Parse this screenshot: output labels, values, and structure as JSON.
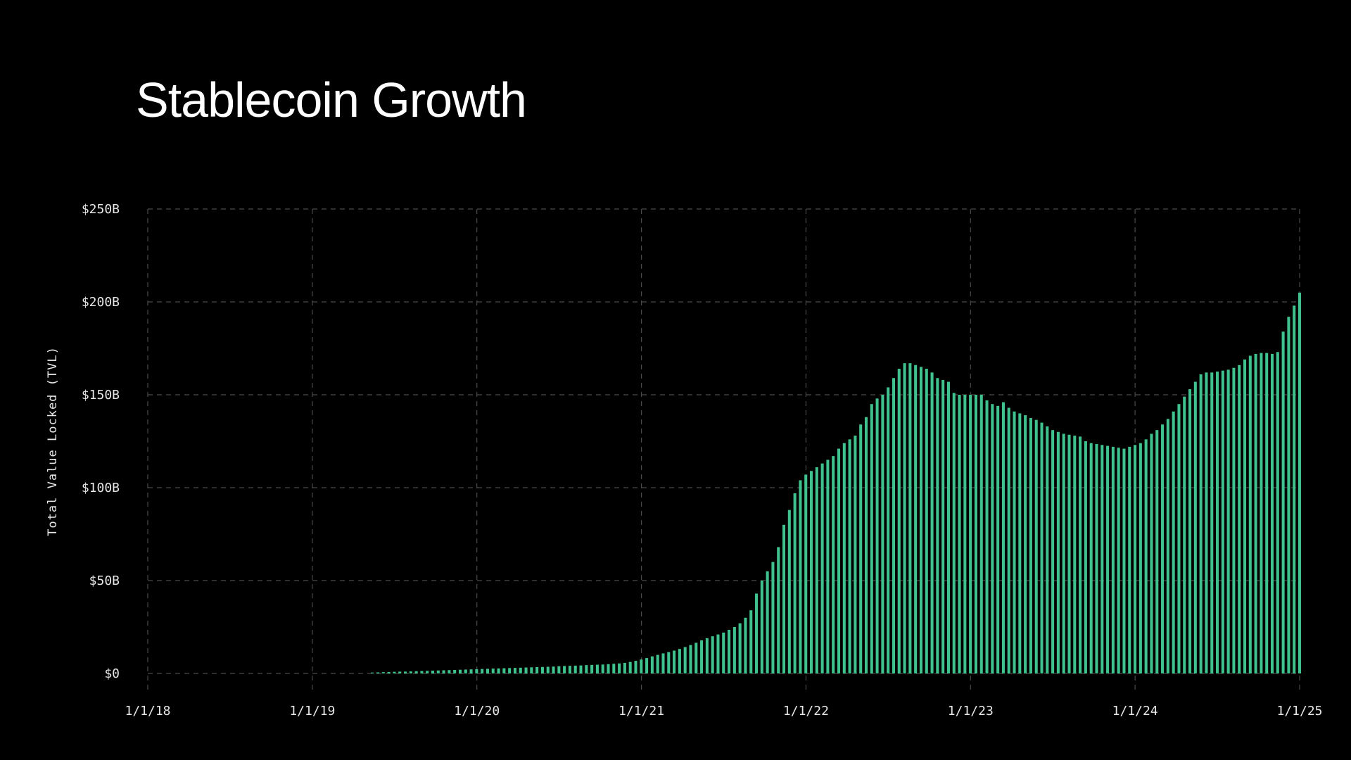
{
  "page": {
    "title": "Stablecoin Growth"
  },
  "colors": {
    "background": "#000000",
    "bar": "#3fc28e",
    "grid": "#4a4a4a",
    "text": "#e6e6e6"
  },
  "chart_data": {
    "type": "bar",
    "title": "Stablecoin Growth",
    "ylabel": "Total Value Locked (TVL)",
    "xlabel": "",
    "x_start": "2018-01-01",
    "x_end": "2025-01-01",
    "ylim": [
      0,
      250
    ],
    "y_unit": "B USD",
    "grid": true,
    "x_ticks": [
      "1/1/18",
      "1/1/19",
      "1/1/20",
      "1/1/21",
      "1/1/22",
      "1/1/23",
      "1/1/24",
      "1/1/25"
    ],
    "y_ticks": [
      "$0",
      "$50B",
      "$100B",
      "$150B",
      "$200B",
      "$250B"
    ],
    "y_tick_values": [
      0,
      50,
      100,
      150,
      200,
      250
    ],
    "values": [
      0.5,
      0.6,
      0.7,
      0.8,
      0.9,
      1.0,
      1.0,
      1.1,
      1.2,
      1.3,
      1.4,
      1.5,
      1.6,
      1.7,
      1.8,
      1.9,
      2.0,
      2.1,
      2.2,
      2.3,
      2.4,
      2.5,
      2.6,
      2.7,
      2.8,
      2.9,
      3.0,
      3.1,
      3.2,
      3.3,
      3.4,
      3.5,
      3.6,
      3.7,
      3.9,
      4.0,
      4.1,
      4.2,
      4.3,
      4.5,
      4.6,
      4.7,
      4.8,
      5.0,
      5.2,
      5.4,
      5.7,
      6.2,
      6.8,
      7.5,
      8.3,
      9.2,
      10.0,
      10.8,
      11.5,
      12.3,
      13.2,
      14.2,
      15.3,
      16.5,
      17.8,
      19.0,
      20.0,
      21.0,
      22.0,
      23.5,
      25.0,
      27.0,
      30.0,
      34.0,
      43.0,
      50.0,
      55.0,
      60.0,
      68.0,
      80.0,
      88.0,
      97.0,
      104.0,
      107.0,
      109.0,
      111.0,
      113.0,
      115.0,
      117.0,
      121.0,
      124.0,
      126.0,
      128.0,
      134.0,
      138.0,
      145.0,
      148.0,
      150.0,
      154.0,
      159.0,
      164.0,
      167.0,
      167.0,
      166.0,
      165.0,
      164.0,
      162.0,
      159.0,
      158.0,
      157.0,
      151.0,
      150.0,
      150.0,
      150.0,
      150.0,
      150.0,
      147.0,
      145.0,
      144.0,
      146.0,
      143.0,
      141.0,
      140.0,
      139.0,
      137.5,
      136.5,
      135.0,
      133.0,
      131.0,
      130.0,
      129.0,
      128.5,
      128.0,
      127.5,
      125.0,
      124.0,
      123.5,
      123.0,
      122.5,
      122.0,
      121.5,
      121.0,
      122.0,
      123.0,
      124.0,
      126.0,
      129.0,
      131.0,
      134.0,
      137.0,
      141.0,
      145.0,
      149.0,
      153.0,
      157.0,
      161.0,
      162.0,
      162.0,
      162.5,
      163.0,
      163.5,
      164.5,
      166.0,
      169.0,
      171.0,
      172.0,
      172.5,
      172.5,
      172.0,
      173.0,
      184.0,
      192.0,
      198.0,
      205.0
    ]
  }
}
